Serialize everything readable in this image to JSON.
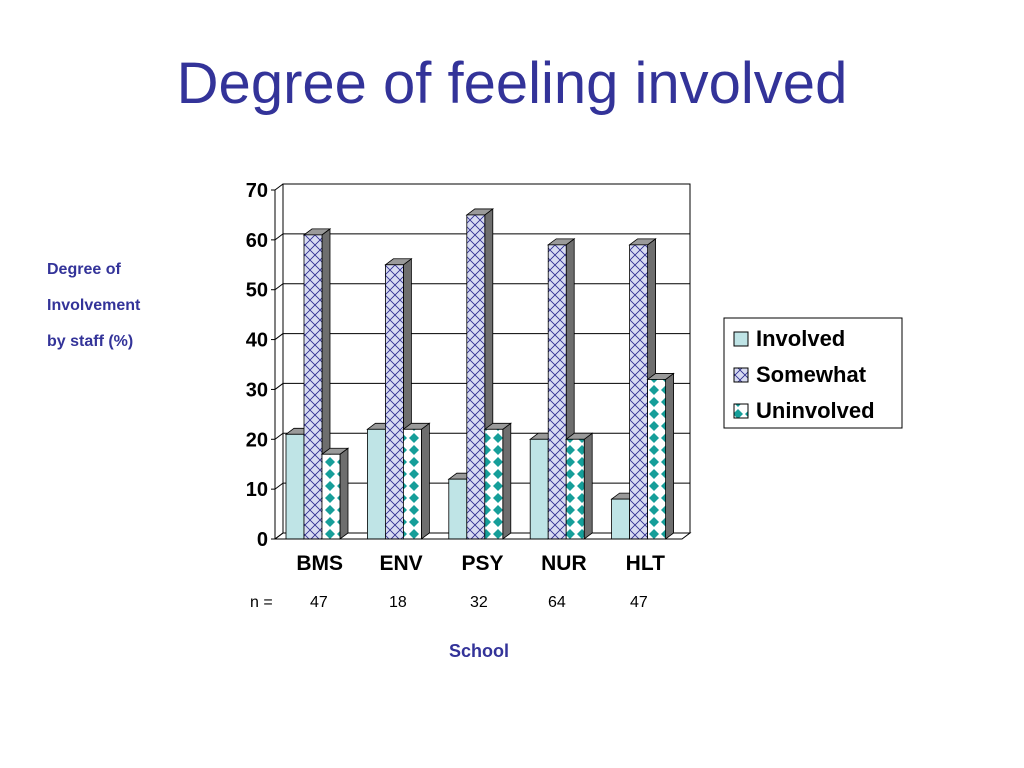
{
  "slide": {
    "title": "Degree of feeling involved"
  },
  "y_axis_title_lines": [
    "Degree of",
    "Involvement",
    "by staff (%)"
  ],
  "x_axis_title": "School",
  "n_label": "n =",
  "n_values": [
    "47",
    "18",
    "32",
    "64",
    "47"
  ],
  "colors": {
    "title": "#333399",
    "involved_fill": "#bfe4e6",
    "somewhat_fill": "#d7dbf2",
    "somewhat_pattern": "#2b2b8f",
    "uninvolved_bg": "#ffffff",
    "uninvolved_pattern": "#169e99"
  },
  "chart_data": {
    "type": "bar",
    "title": "Degree of feeling involved",
    "xlabel": "School",
    "ylabel": "Degree of Involvement by staff (%)",
    "categories": [
      "BMS",
      "ENV",
      "PSY",
      "NUR",
      "HLT"
    ],
    "series": [
      {
        "name": "Involved",
        "values": [
          21,
          22,
          12,
          20,
          8
        ]
      },
      {
        "name": "Somewhat",
        "values": [
          61,
          55,
          65,
          59,
          59
        ]
      },
      {
        "name": "Uninvolved",
        "values": [
          17,
          22,
          22,
          20,
          32
        ]
      }
    ],
    "ylim": [
      0,
      70
    ],
    "yticks": [
      0,
      10,
      20,
      30,
      40,
      50,
      60,
      70
    ],
    "grid": true,
    "legend_position": "right"
  }
}
